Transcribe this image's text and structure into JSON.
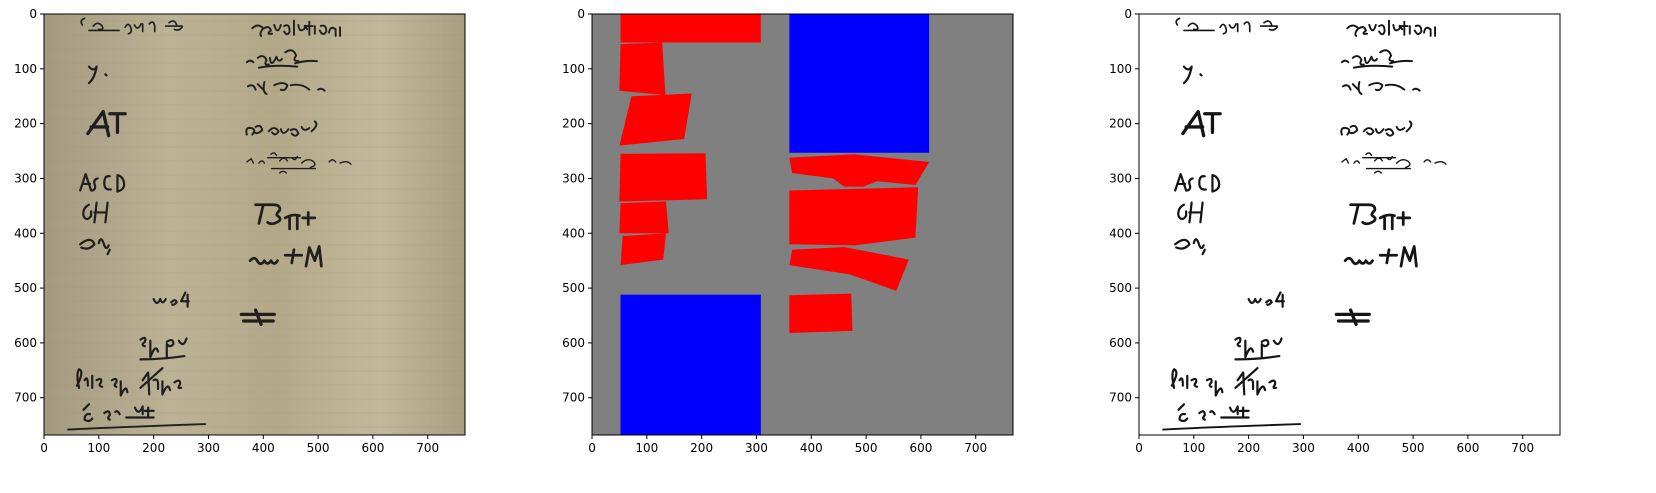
{
  "figure": {
    "panels": [
      {
        "id": "original-photo",
        "kind": "image",
        "description_colors": {
          "paper": "#b6aa8a",
          "ink": "#1c1a16"
        },
        "xlim": [
          0,
          768
        ],
        "ylim": [
          768,
          0
        ],
        "xticks": [
          0,
          100,
          200,
          300,
          400,
          500,
          600,
          700
        ],
        "yticks": [
          0,
          100,
          200,
          300,
          400,
          500,
          600,
          700
        ]
      },
      {
        "id": "layout-mask",
        "kind": "segmentation",
        "background_color": "#808080",
        "text_region_color": "#ff0000",
        "block_color": "#0000ff",
        "blocks": [
          {
            "polygon": [
              [
                360,
                0
              ],
              [
                615,
                0
              ],
              [
                615,
                253
              ],
              [
                360,
                253
              ]
            ]
          },
          {
            "polygon": [
              [
                52,
                512
              ],
              [
                308,
                512
              ],
              [
                308,
                768
              ],
              [
                52,
                768
              ]
            ]
          }
        ],
        "regions": [
          {
            "polygon": [
              [
                52,
                0
              ],
              [
                308,
                0
              ],
              [
                308,
                52
              ],
              [
                52,
                52
              ]
            ]
          },
          {
            "polygon": [
              [
                52,
                55
              ],
              [
                128,
                52
              ],
              [
                134,
                148
              ],
              [
                50,
                140
              ]
            ]
          },
          {
            "polygon": [
              [
                72,
                150
              ],
              [
                182,
                145
              ],
              [
                168,
                228
              ],
              [
                50,
                240
              ]
            ]
          },
          {
            "polygon": [
              [
                52,
                255
              ],
              [
                207,
                254
              ],
              [
                210,
                338
              ],
              [
                50,
                342
              ]
            ]
          },
          {
            "polygon": [
              [
                52,
                345
              ],
              [
                135,
                342
              ],
              [
                140,
                400
              ],
              [
                50,
                400
              ]
            ]
          },
          {
            "polygon": [
              [
                56,
                405
              ],
              [
                135,
                400
              ],
              [
                130,
                448
              ],
              [
                52,
                458
              ]
            ]
          },
          {
            "polygon": [
              [
                360,
                262
              ],
              [
                478,
                256
              ],
              [
                615,
                270
              ],
              [
                590,
                312
              ],
              [
                520,
                305
              ],
              [
                495,
                315
              ],
              [
                460,
                315
              ],
              [
                440,
                300
              ],
              [
                365,
                290
              ]
            ]
          },
          {
            "polygon": [
              [
                360,
                322
              ],
              [
                595,
                316
              ],
              [
                590,
                408
              ],
              [
                480,
                422
              ],
              [
                360,
                420
              ]
            ]
          },
          {
            "polygon": [
              [
                365,
                430
              ],
              [
                460,
                425
              ],
              [
                578,
                448
              ],
              [
                555,
                505
              ],
              [
                470,
                475
              ],
              [
                360,
                458
              ]
            ]
          },
          {
            "polygon": [
              [
                360,
                513
              ],
              [
                473,
                510
              ],
              [
                475,
                578
              ],
              [
                360,
                582
              ]
            ]
          }
        ],
        "xlim": [
          0,
          768
        ],
        "ylim": [
          768,
          0
        ],
        "xticks": [
          0,
          100,
          200,
          300,
          400,
          500,
          600,
          700
        ],
        "yticks": [
          0,
          100,
          200,
          300,
          400,
          500,
          600,
          700
        ]
      },
      {
        "id": "binarized-result",
        "kind": "image",
        "description_colors": {
          "paper": "#ffffff",
          "ink": "#000000"
        },
        "xlim": [
          0,
          768
        ],
        "ylim": [
          768,
          0
        ],
        "xticks": [
          0,
          100,
          200,
          300,
          400,
          500,
          600,
          700
        ],
        "yticks": [
          0,
          100,
          200,
          300,
          400,
          500,
          600,
          700
        ]
      }
    ]
  }
}
